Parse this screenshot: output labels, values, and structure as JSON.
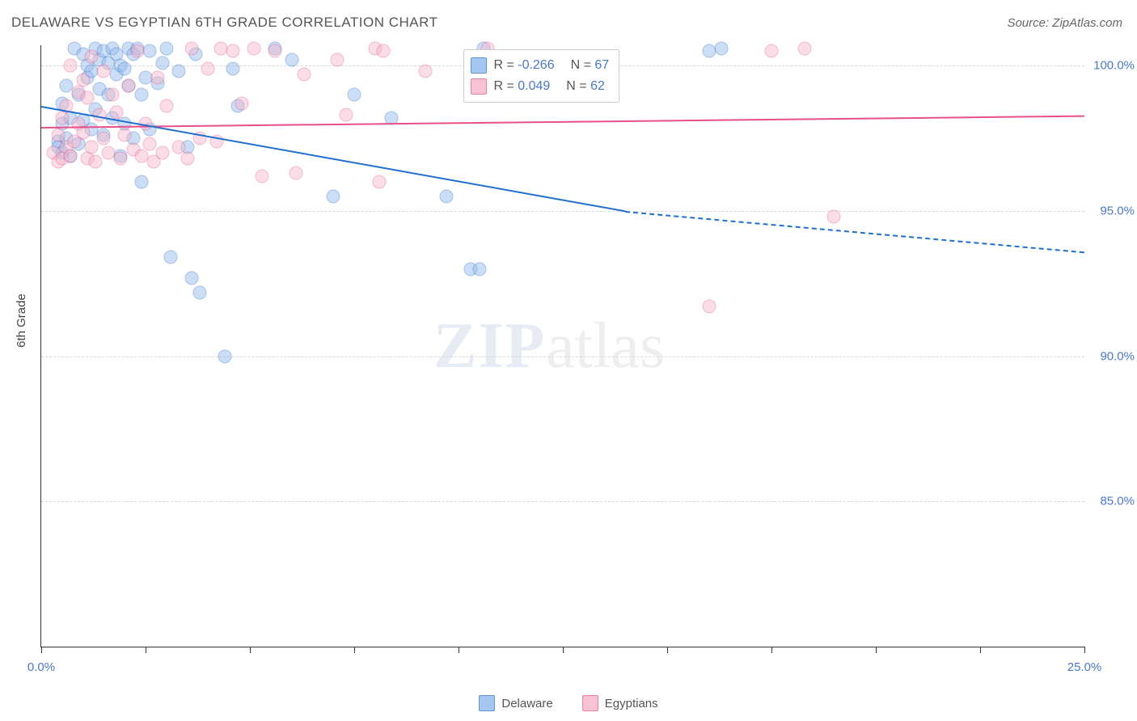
{
  "header": {
    "title": "DELAWARE VS EGYPTIAN 6TH GRADE CORRELATION CHART",
    "source": "Source: ZipAtlas.com"
  },
  "chart": {
    "type": "scatter",
    "yaxis_title": "6th Grade",
    "background_color": "#ffffff",
    "grid_color": "#d7d7d7",
    "grid_dashed": true,
    "axis_color": "#333333",
    "tick_label_color": "#4a78c8",
    "tick_fontsize": 15,
    "xlim": [
      0,
      25
    ],
    "ylim": [
      80,
      100.7
    ],
    "xtick_step": 2.5,
    "xtick_labels": {
      "0": "0.0%",
      "25": "25.0%"
    },
    "yticks": [
      85,
      90,
      95,
      100
    ],
    "ytick_labels": {
      "85": "85.0%",
      "90": "90.0%",
      "95": "95.0%",
      "100": "100.0%"
    },
    "marker_size": 17,
    "marker_opacity": 0.45,
    "watermark": {
      "zip": "ZIP",
      "atlas": "atlas"
    },
    "series": [
      {
        "name": "Delaware",
        "fill_color": "#8fb8ea",
        "stroke_color": "#3a78c9",
        "R": "-0.266",
        "N": "67",
        "regression": {
          "solid": {
            "x1": 0,
            "y1": 98.6,
            "x2": 14.0,
            "y2": 95.0
          },
          "dashed": {
            "x1": 14.0,
            "y1": 95.0,
            "x2": 25.0,
            "y2": 93.6
          },
          "color": "#1f6fd1",
          "width": 2.5
        },
        "points": [
          [
            0.4,
            97.4
          ],
          [
            0.4,
            97.2
          ],
          [
            0.5,
            97.0
          ],
          [
            0.5,
            98.0
          ],
          [
            0.5,
            98.7
          ],
          [
            0.6,
            99.3
          ],
          [
            0.6,
            97.5
          ],
          [
            0.7,
            96.9
          ],
          [
            0.7,
            98.2
          ],
          [
            0.8,
            100.6
          ],
          [
            0.9,
            99.0
          ],
          [
            0.9,
            97.3
          ],
          [
            1.0,
            100.4
          ],
          [
            1.0,
            98.1
          ],
          [
            1.1,
            100.0
          ],
          [
            1.1,
            99.6
          ],
          [
            1.2,
            99.8
          ],
          [
            1.2,
            97.8
          ],
          [
            1.3,
            100.6
          ],
          [
            1.3,
            98.5
          ],
          [
            1.4,
            100.2
          ],
          [
            1.4,
            99.2
          ],
          [
            1.5,
            100.5
          ],
          [
            1.5,
            97.6
          ],
          [
            1.6,
            100.1
          ],
          [
            1.6,
            99.0
          ],
          [
            1.7,
            100.6
          ],
          [
            1.7,
            98.2
          ],
          [
            1.8,
            100.4
          ],
          [
            1.8,
            99.7
          ],
          [
            1.9,
            100.0
          ],
          [
            1.9,
            96.9
          ],
          [
            2.0,
            99.9
          ],
          [
            2.0,
            98.0
          ],
          [
            2.1,
            100.6
          ],
          [
            2.1,
            99.3
          ],
          [
            2.2,
            100.4
          ],
          [
            2.2,
            97.5
          ],
          [
            2.3,
            100.6
          ],
          [
            2.4,
            99.0
          ],
          [
            2.4,
            96.0
          ],
          [
            2.5,
            99.6
          ],
          [
            2.6,
            100.5
          ],
          [
            2.6,
            97.8
          ],
          [
            2.8,
            99.4
          ],
          [
            2.9,
            100.1
          ],
          [
            3.0,
            100.6
          ],
          [
            3.1,
            93.4
          ],
          [
            3.3,
            99.8
          ],
          [
            3.5,
            97.2
          ],
          [
            3.6,
            92.7
          ],
          [
            3.7,
            100.4
          ],
          [
            3.8,
            92.2
          ],
          [
            4.4,
            90.0
          ],
          [
            4.6,
            99.9
          ],
          [
            4.7,
            98.6
          ],
          [
            5.6,
            100.6
          ],
          [
            6.0,
            100.2
          ],
          [
            7.0,
            95.5
          ],
          [
            7.5,
            99.0
          ],
          [
            8.4,
            98.2
          ],
          [
            9.7,
            95.5
          ],
          [
            10.3,
            93.0
          ],
          [
            10.5,
            93.0
          ],
          [
            10.6,
            100.6
          ],
          [
            16.0,
            100.5
          ],
          [
            16.3,
            100.6
          ]
        ]
      },
      {
        "name": "Egyptians",
        "fill_color": "#f4b5c8",
        "stroke_color": "#e66196",
        "R": "0.049",
        "N": "62",
        "regression": {
          "solid": {
            "x1": 0,
            "y1": 97.9,
            "x2": 25.0,
            "y2": 98.3
          },
          "dashed": null,
          "color": "#e94f8a",
          "width": 2.5
        },
        "points": [
          [
            0.3,
            97.0
          ],
          [
            0.4,
            97.6
          ],
          [
            0.4,
            96.7
          ],
          [
            0.5,
            98.2
          ],
          [
            0.5,
            96.8
          ],
          [
            0.6,
            97.2
          ],
          [
            0.6,
            98.6
          ],
          [
            0.7,
            96.9
          ],
          [
            0.7,
            100.0
          ],
          [
            0.8,
            97.4
          ],
          [
            0.9,
            99.1
          ],
          [
            0.9,
            98.0
          ],
          [
            1.0,
            97.7
          ],
          [
            1.0,
            99.5
          ],
          [
            1.1,
            96.8
          ],
          [
            1.1,
            98.9
          ],
          [
            1.2,
            97.2
          ],
          [
            1.2,
            100.3
          ],
          [
            1.3,
            96.7
          ],
          [
            1.4,
            98.3
          ],
          [
            1.5,
            97.5
          ],
          [
            1.5,
            99.8
          ],
          [
            1.6,
            97.0
          ],
          [
            1.7,
            99.0
          ],
          [
            1.8,
            98.4
          ],
          [
            1.9,
            96.8
          ],
          [
            2.0,
            97.6
          ],
          [
            2.1,
            99.3
          ],
          [
            2.2,
            97.1
          ],
          [
            2.3,
            100.5
          ],
          [
            2.4,
            96.9
          ],
          [
            2.5,
            98.0
          ],
          [
            2.6,
            97.3
          ],
          [
            2.7,
            96.7
          ],
          [
            2.8,
            99.6
          ],
          [
            2.9,
            97.0
          ],
          [
            3.0,
            98.6
          ],
          [
            3.3,
            97.2
          ],
          [
            3.5,
            96.8
          ],
          [
            3.6,
            100.6
          ],
          [
            3.8,
            97.5
          ],
          [
            4.0,
            99.9
          ],
          [
            4.2,
            97.4
          ],
          [
            4.3,
            100.6
          ],
          [
            4.6,
            100.5
          ],
          [
            4.8,
            98.7
          ],
          [
            5.1,
            100.6
          ],
          [
            5.3,
            96.2
          ],
          [
            5.6,
            100.5
          ],
          [
            6.1,
            96.3
          ],
          [
            6.3,
            99.7
          ],
          [
            7.1,
            100.2
          ],
          [
            7.3,
            98.3
          ],
          [
            8.0,
            100.6
          ],
          [
            8.1,
            96.0
          ],
          [
            8.2,
            100.5
          ],
          [
            9.2,
            99.8
          ],
          [
            10.7,
            100.6
          ],
          [
            16.0,
            91.7
          ],
          [
            17.5,
            100.5
          ],
          [
            18.3,
            100.6
          ],
          [
            19.0,
            94.8
          ]
        ]
      }
    ],
    "stats_box": {
      "left_pct": 40.5,
      "top_pct": 0.7,
      "r_label_prefix": "R =",
      "n_label_prefix": "N ="
    },
    "bottom_legend": {
      "items": [
        "Delaware",
        "Egyptians"
      ]
    }
  }
}
